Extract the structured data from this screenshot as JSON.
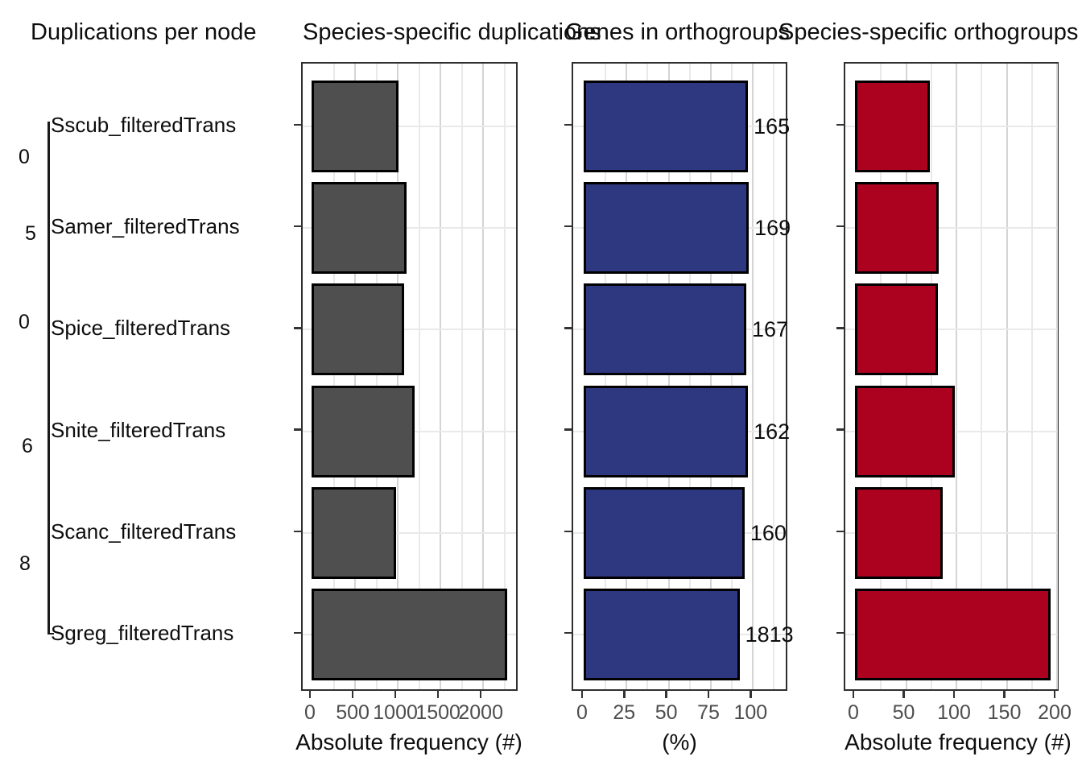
{
  "figure": {
    "background": "#ffffff",
    "text_color": "#0d0d0d",
    "tick_label_color": "#4d4d4d",
    "gridline_color": "#d4d4d4"
  },
  "species": [
    "Sscub_filteredTrans",
    "Samer_filteredTrans",
    "Spice_filteredTrans",
    "Snite_filteredTrans",
    "Scanc_filteredTrans",
    "Sgreg_filteredTrans"
  ],
  "chart_data": [
    {
      "type": "tree",
      "title": "Duplications per node",
      "leaves": [
        "Sscub_filteredTrans",
        "Samer_filteredTrans",
        "Spice_filteredTrans",
        "Snite_filteredTrans",
        "Scanc_filteredTrans",
        "Sgreg_filteredTrans"
      ],
      "node_labels": [
        "0",
        "5",
        "0",
        "6",
        "8"
      ]
    },
    {
      "type": "bar",
      "title": "Species-specific duplications",
      "categories": [
        "Sscub_filteredTrans",
        "Samer_filteredTrans",
        "Spice_filteredTrans",
        "Snite_filteredTrans",
        "Scanc_filteredTrans",
        "Sgreg_filteredTrans"
      ],
      "values": [
        1020,
        1110,
        1085,
        1210,
        990,
        2290
      ],
      "xlabel": "Absolute frequency (#)",
      "xticks": [
        0,
        500,
        1000,
        1500,
        2000
      ],
      "xlim": [
        0,
        2430
      ],
      "bar_color": "#4f4f4f",
      "grid": true,
      "legend": false
    },
    {
      "type": "bar",
      "title": "Genes in orthogroups",
      "categories": [
        "Sscub_filteredTrans",
        "Samer_filteredTrans",
        "Spice_filteredTrans",
        "Snite_filteredTrans",
        "Scanc_filteredTrans",
        "Sgreg_filteredTrans"
      ],
      "values": [
        97.5,
        98,
        96.5,
        97.5,
        95.5,
        92.5
      ],
      "bar_labels": [
        "165",
        "169",
        "167",
        "162",
        "160",
        "1813"
      ],
      "xlabel": "(%)",
      "xticks": [
        0,
        25,
        50,
        75,
        100
      ],
      "xlim": [
        0,
        122
      ],
      "bar_color": "#2d3880",
      "grid": true,
      "legend": false
    },
    {
      "type": "bar",
      "title": "Species-specific orthogroups",
      "categories": [
        "Sscub_filteredTrans",
        "Samer_filteredTrans",
        "Spice_filteredTrans",
        "Snite_filteredTrans",
        "Scanc_filteredTrans",
        "Sgreg_filteredTrans"
      ],
      "values": [
        74,
        83,
        82,
        99,
        87,
        194
      ],
      "xlabel": "Absolute frequency (#)",
      "xticks": [
        0,
        50,
        100,
        150,
        200
      ],
      "xlim": [
        0,
        204
      ],
      "bar_color": "#ac0220",
      "grid": true,
      "legend": false
    }
  ]
}
